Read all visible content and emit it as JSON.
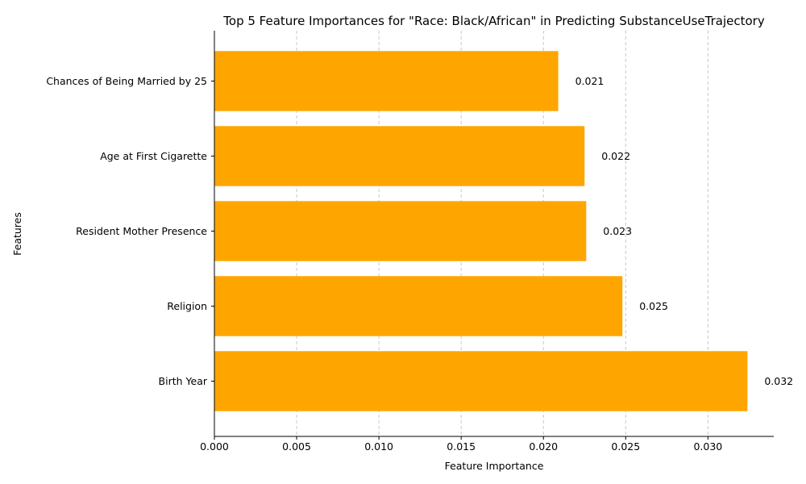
{
  "chart_data": {
    "type": "bar",
    "orientation": "horizontal",
    "title": "Top 5 Feature Importances for \"Race: Black/African\" in Predicting SubstanceUseTrajectory",
    "xlabel": "Feature Importance",
    "ylabel": "Features",
    "categories": [
      "Birth Year",
      "Religion",
      "Resident Mother Presence",
      "Age at First Cigarette",
      "Chances of Being Married by 25"
    ],
    "values": [
      0.0324,
      0.0248,
      0.0226,
      0.0225,
      0.0209
    ],
    "value_labels": [
      "0.032",
      "0.025",
      "0.023",
      "0.022",
      "0.021"
    ],
    "xlim": [
      0,
      0.034
    ],
    "xticks": [
      0.0,
      0.005,
      0.01,
      0.015,
      0.02,
      0.025,
      0.03
    ],
    "xtick_labels": [
      "0.000",
      "0.005",
      "0.010",
      "0.015",
      "0.020",
      "0.025",
      "0.030"
    ],
    "grid": "vertical dashed",
    "bar_color": "#FFA500",
    "grid_color": "#c8c8c8"
  }
}
